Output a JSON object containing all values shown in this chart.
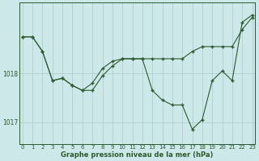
{
  "title": "Graphe pression niveau de la mer (hPa)",
  "bg_color": "#cce8e8",
  "grid_color": "#aacccc",
  "line_color": "#2d5a2d",
  "x_values": [
    0,
    1,
    2,
    3,
    4,
    5,
    6,
    7,
    8,
    9,
    10,
    11,
    12,
    13,
    14,
    15,
    16,
    17,
    18,
    19,
    20,
    21,
    22,
    23
  ],
  "series1": [
    1018.75,
    1018.75,
    1018.45,
    1017.85,
    1017.9,
    1017.75,
    1017.65,
    1017.65,
    1017.95,
    1018.15,
    1018.3,
    1018.3,
    1018.3,
    1018.3,
    1018.3,
    1018.3,
    1018.3,
    1018.45,
    1018.55,
    1018.55,
    1018.55,
    1018.55,
    1018.9,
    1019.15
  ],
  "series2": [
    1018.75,
    1018.75,
    1018.45,
    1017.85,
    1017.9,
    1017.75,
    1017.65,
    1017.8,
    1018.1,
    1018.25,
    1018.3,
    1018.3,
    1018.3,
    1017.65,
    1017.45,
    1017.35,
    1017.35,
    1016.85,
    1017.05,
    1017.85,
    1018.05,
    1017.85,
    1019.05,
    1019.2
  ],
  "yticks": [
    1017.0,
    1018.0
  ],
  "ylim": [
    1016.55,
    1019.45
  ],
  "xlim": [
    -0.3,
    23.3
  ],
  "xlabel_fontsize": 6.0,
  "tick_fontsize": 5.0,
  "ytick_fontsize": 5.5
}
